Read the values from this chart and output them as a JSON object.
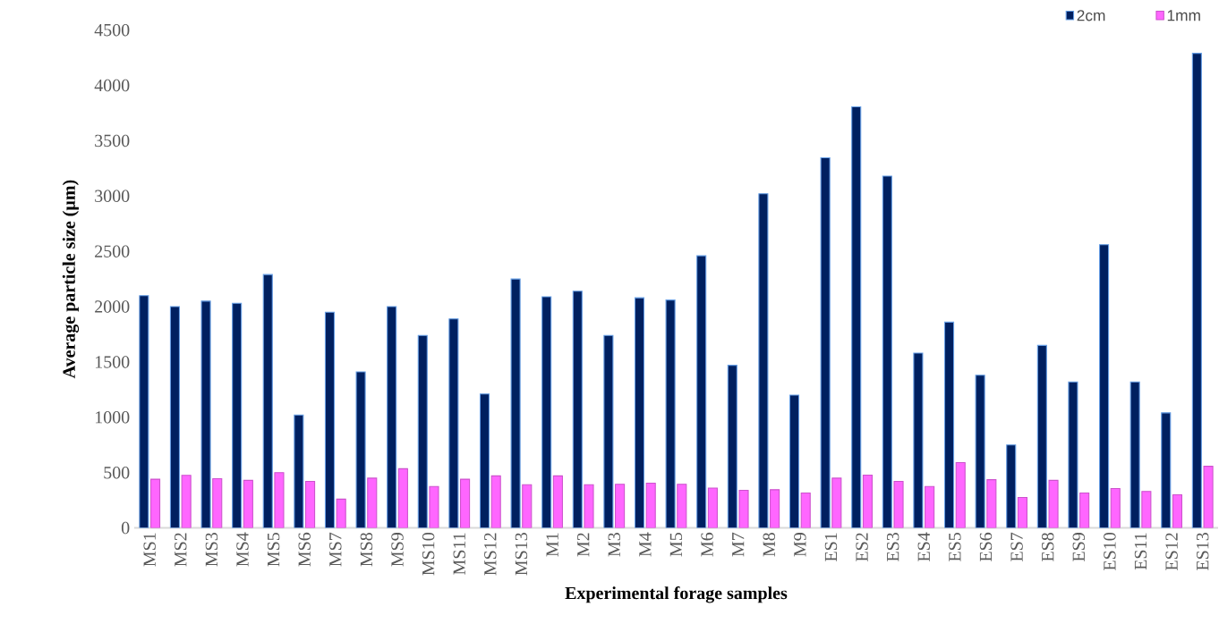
{
  "chart_data": {
    "type": "bar",
    "xlabel": "Experimental forage samples",
    "ylabel": "Average particle size (µm)",
    "categories": [
      "MS1",
      "MS2",
      "MS3",
      "MS4",
      "MS5",
      "MS6",
      "MS7",
      "MS8",
      "MS9",
      "MS10",
      "MS11",
      "MS12",
      "MS13",
      "M1",
      "M2",
      "M3",
      "M4",
      "M5",
      "M6",
      "M7",
      "M8",
      "M9",
      "ES1",
      "ES2",
      "ES3",
      "ES4",
      "ES5",
      "ES6",
      "ES7",
      "ES8",
      "ES9",
      "ES10",
      "ES11",
      "ES12",
      "ES13"
    ],
    "series": [
      {
        "name": "2cm",
        "color": "#002060",
        "values": [
          2100,
          2000,
          2050,
          2030,
          2290,
          1020,
          1950,
          1410,
          2000,
          1740,
          1890,
          1210,
          2250,
          2090,
          2140,
          1740,
          2080,
          2060,
          2460,
          1470,
          3020,
          1200,
          3345,
          3806,
          3180,
          1580,
          1860,
          1380,
          750,
          1650,
          1320,
          2560,
          1320,
          1040,
          4290
        ]
      },
      {
        "name": "1mm",
        "color": "#ff66ff",
        "values": [
          440,
          475,
          445,
          430,
          500,
          420,
          260,
          450,
          535,
          375,
          440,
          470,
          390,
          470,
          390,
          395,
          405,
          395,
          360,
          340,
          345,
          315,
          450,
          477,
          420,
          375,
          590,
          436,
          275,
          430,
          315,
          356,
          330,
          299,
          557
        ]
      }
    ],
    "ylim": [
      0,
      4500
    ],
    "yticks": [
      0,
      500,
      1000,
      1500,
      2000,
      2500,
      3000,
      3500,
      4000,
      4500
    ],
    "grid": false,
    "legend": "top right"
  }
}
